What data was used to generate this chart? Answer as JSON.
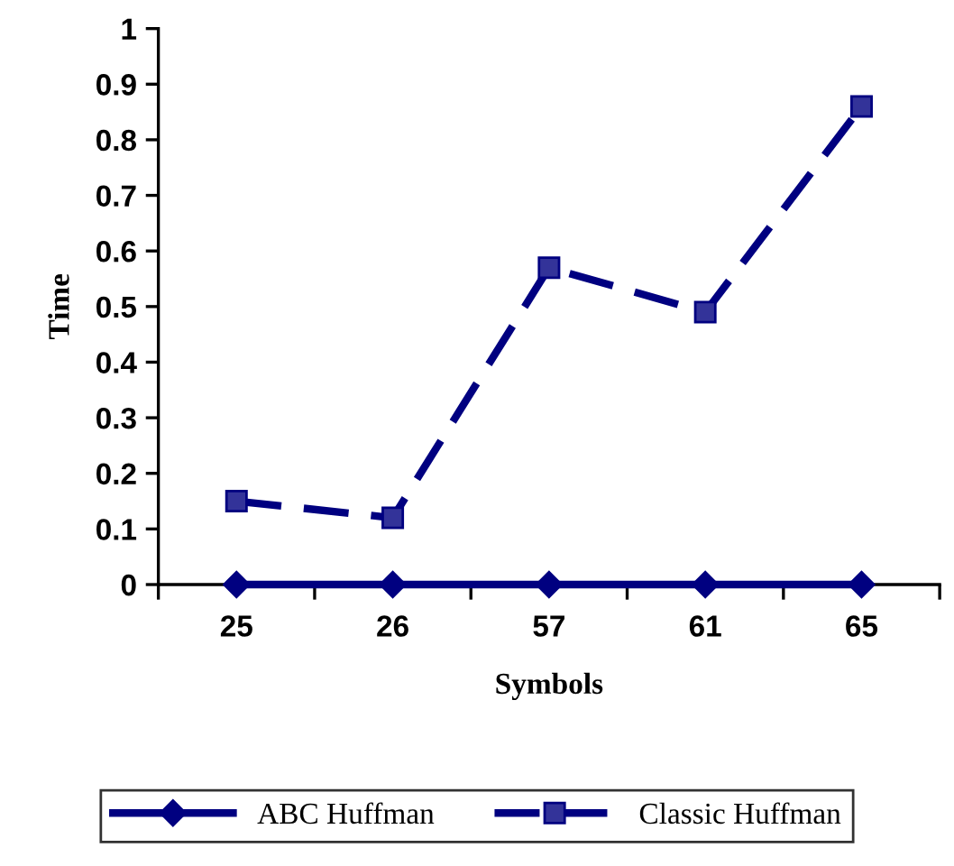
{
  "chart_data": {
    "type": "line",
    "xlabel": "Symbols",
    "ylabel": "Time",
    "categories": [
      "25",
      "26",
      "57",
      "61",
      "65"
    ],
    "series": [
      {
        "name": "ABC Huffman",
        "color": "#000080",
        "values": [
          0,
          0,
          0,
          0,
          0
        ],
        "marker": "diamond",
        "line_style": "solid"
      },
      {
        "name": "Classic Huffman",
        "color": "#000080",
        "values": [
          0.15,
          0.12,
          0.57,
          0.49,
          0.86
        ],
        "marker": "square",
        "line_style": "dashed"
      }
    ],
    "ylim": [
      0,
      1
    ],
    "yticks": [
      0,
      0.1,
      0.2,
      0.3,
      0.4,
      0.5,
      0.6,
      0.7,
      0.8,
      0.9,
      1
    ],
    "grid": false,
    "legend": "bottom"
  }
}
